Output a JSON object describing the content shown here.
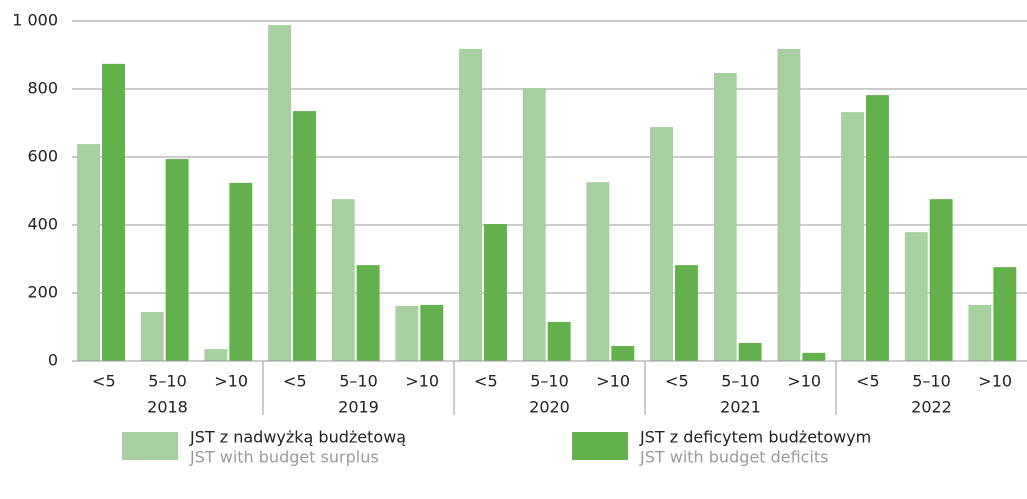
{
  "chart_data": {
    "type": "bar",
    "groups": [
      {
        "name": "2018",
        "categories": [
          "<5",
          "5–10",
          ">10"
        ]
      },
      {
        "name": "2019",
        "categories": [
          "<5",
          "5–10",
          ">10"
        ]
      },
      {
        "name": "2020",
        "categories": [
          "<5",
          "5–10",
          ">10"
        ]
      },
      {
        "name": "2021",
        "categories": [
          "<5",
          "5–10",
          ">10"
        ]
      },
      {
        "name": "2022",
        "categories": [
          "<5",
          "5–10",
          ">10"
        ]
      }
    ],
    "series": [
      {
        "name": "JST z nadwyżką budżetową",
        "name_en": "JST with budget surplus",
        "color": "#a7cfa0",
        "values": [
          638,
          144,
          35,
          988,
          476,
          162,
          918,
          803,
          526,
          688,
          847,
          918,
          732,
          379,
          165
        ]
      },
      {
        "name": "JST z deficytem budżetowym",
        "name_en": "JST with budget deficits",
        "color": "#63b14b",
        "values": [
          874,
          594,
          524,
          735,
          282,
          165,
          403,
          115,
          44,
          282,
          53,
          24,
          782,
          476,
          276
        ]
      }
    ],
    "ylim": [
      0,
      1000
    ],
    "yticks": [
      0,
      200,
      400,
      600,
      800,
      {
        "value": 1000,
        "label": "1 000"
      }
    ],
    "grid": true
  }
}
